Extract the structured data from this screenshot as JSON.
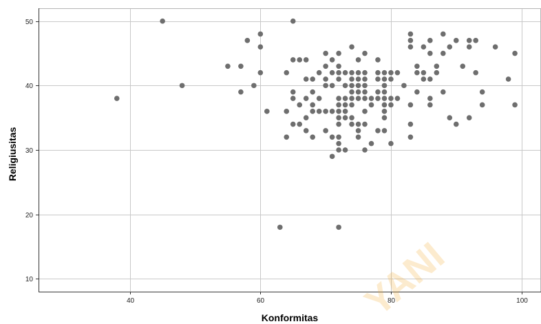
{
  "chart_data": {
    "type": "scatter",
    "xlabel": "Konformitas",
    "ylabel": "Religiusitas",
    "xlim": [
      26,
      103
    ],
    "ylim": [
      8,
      52
    ],
    "xticks": [
      40,
      60,
      80,
      100
    ],
    "yticks": [
      10,
      20,
      30,
      40,
      50
    ],
    "grid": true,
    "legend": "none",
    "point_color": "#6e6e6e",
    "grid_color": "#c8c8c8",
    "watermark": "YANI",
    "points": [
      [
        38,
        38
      ],
      [
        45,
        50
      ],
      [
        48,
        40
      ],
      [
        55,
        43
      ],
      [
        57,
        43
      ],
      [
        57,
        39
      ],
      [
        58,
        47
      ],
      [
        59,
        40
      ],
      [
        60,
        48
      ],
      [
        60,
        46
      ],
      [
        60,
        42
      ],
      [
        61,
        36
      ],
      [
        63,
        18
      ],
      [
        64,
        42
      ],
      [
        64,
        36
      ],
      [
        64,
        32
      ],
      [
        65,
        50
      ],
      [
        65,
        44
      ],
      [
        65,
        39
      ],
      [
        65,
        38
      ],
      [
        65,
        34
      ],
      [
        66,
        44
      ],
      [
        66,
        37
      ],
      [
        66,
        34
      ],
      [
        67,
        44
      ],
      [
        67,
        41
      ],
      [
        67,
        38
      ],
      [
        67,
        35
      ],
      [
        67,
        33
      ],
      [
        68,
        41
      ],
      [
        68,
        39
      ],
      [
        68,
        37
      ],
      [
        68,
        36
      ],
      [
        68,
        32
      ],
      [
        69,
        42
      ],
      [
        69,
        38
      ],
      [
        69,
        36
      ],
      [
        70,
        45
      ],
      [
        70,
        43
      ],
      [
        70,
        41
      ],
      [
        70,
        40
      ],
      [
        70,
        36
      ],
      [
        70,
        33
      ],
      [
        71,
        44
      ],
      [
        71,
        42
      ],
      [
        71,
        40
      ],
      [
        71,
        36
      ],
      [
        71,
        32
      ],
      [
        71,
        29
      ],
      [
        72,
        45
      ],
      [
        72,
        43
      ],
      [
        72,
        42
      ],
      [
        72,
        41
      ],
      [
        72,
        38
      ],
      [
        72,
        37
      ],
      [
        72,
        36
      ],
      [
        72,
        35
      ],
      [
        72,
        34
      ],
      [
        72,
        32
      ],
      [
        72,
        31
      ],
      [
        72,
        30
      ],
      [
        72,
        18
      ],
      [
        73,
        42
      ],
      [
        73,
        40
      ],
      [
        73,
        38
      ],
      [
        73,
        37
      ],
      [
        73,
        36
      ],
      [
        73,
        35
      ],
      [
        73,
        30
      ],
      [
        74,
        46
      ],
      [
        74,
        42
      ],
      [
        74,
        41
      ],
      [
        74,
        40
      ],
      [
        74,
        39
      ],
      [
        74,
        38
      ],
      [
        74,
        37
      ],
      [
        74,
        35
      ],
      [
        74,
        34
      ],
      [
        75,
        44
      ],
      [
        75,
        42
      ],
      [
        75,
        41
      ],
      [
        75,
        40
      ],
      [
        75,
        39
      ],
      [
        75,
        38
      ],
      [
        75,
        34
      ],
      [
        75,
        33
      ],
      [
        75,
        32
      ],
      [
        76,
        45
      ],
      [
        76,
        42
      ],
      [
        76,
        41
      ],
      [
        76,
        40
      ],
      [
        76,
        39
      ],
      [
        76,
        38
      ],
      [
        76,
        36
      ],
      [
        76,
        34
      ],
      [
        76,
        30
      ],
      [
        77,
        38
      ],
      [
        77,
        37
      ],
      [
        77,
        31
      ],
      [
        78,
        44
      ],
      [
        78,
        42
      ],
      [
        78,
        41
      ],
      [
        78,
        39
      ],
      [
        78,
        38
      ],
      [
        78,
        33
      ],
      [
        79,
        42
      ],
      [
        79,
        41
      ],
      [
        79,
        40
      ],
      [
        79,
        39
      ],
      [
        79,
        38
      ],
      [
        79,
        37
      ],
      [
        79,
        36
      ],
      [
        79,
        35
      ],
      [
        79,
        33
      ],
      [
        80,
        42
      ],
      [
        80,
        41
      ],
      [
        80,
        38
      ],
      [
        80,
        37
      ],
      [
        80,
        31
      ],
      [
        81,
        42
      ],
      [
        81,
        38
      ],
      [
        82,
        40
      ],
      [
        83,
        48
      ],
      [
        83,
        47
      ],
      [
        83,
        46
      ],
      [
        83,
        37
      ],
      [
        83,
        34
      ],
      [
        83,
        32
      ],
      [
        84,
        43
      ],
      [
        84,
        42
      ],
      [
        84,
        39
      ],
      [
        85,
        46
      ],
      [
        85,
        42
      ],
      [
        85,
        41
      ],
      [
        86,
        47
      ],
      [
        86,
        45
      ],
      [
        86,
        41
      ],
      [
        86,
        38
      ],
      [
        86,
        37
      ],
      [
        87,
        43
      ],
      [
        87,
        42
      ],
      [
        88,
        48
      ],
      [
        88,
        45
      ],
      [
        88,
        39
      ],
      [
        89,
        46
      ],
      [
        89,
        35
      ],
      [
        90,
        47
      ],
      [
        90,
        34
      ],
      [
        91,
        43
      ],
      [
        92,
        47
      ],
      [
        92,
        46
      ],
      [
        92,
        35
      ],
      [
        93,
        47
      ],
      [
        93,
        42
      ],
      [
        94,
        39
      ],
      [
        94,
        37
      ],
      [
        96,
        46
      ],
      [
        98,
        41
      ],
      [
        99,
        45
      ],
      [
        99,
        37
      ]
    ]
  }
}
